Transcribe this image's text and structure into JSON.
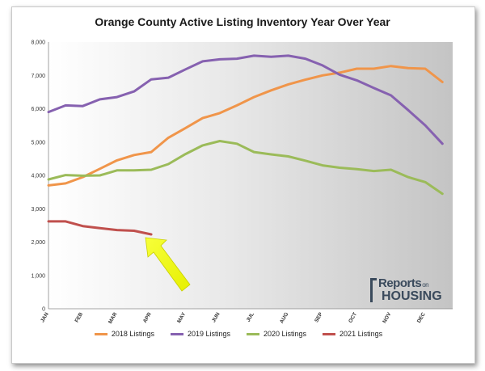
{
  "chart_data": {
    "type": "line",
    "title": "Orange County Active Listing Inventory Year Over Year",
    "ylim": [
      0,
      8000
    ],
    "y_ticks": [
      "0",
      "1,000",
      "2,000",
      "3,000",
      "4,000",
      "5,000",
      "6,000",
      "7,000",
      "8,000"
    ],
    "x_labels": [
      "JAN",
      "FEB",
      "MAR",
      "APR",
      "MAY",
      "JUN",
      "JUL",
      "AUG",
      "SEP",
      "OCT",
      "NOV",
      "DEC"
    ],
    "grid": false,
    "legend_position": "bottom",
    "series": [
      {
        "name": "2018 Listings",
        "color": "#f0954a",
        "x": [
          0,
          0.5,
          1,
          1.5,
          2,
          2.5,
          3,
          3.5,
          4,
          4.5,
          5,
          5.5,
          6,
          6.5,
          7,
          7.5,
          8,
          8.5,
          9,
          9.5,
          10,
          10.5,
          11,
          11.5
        ],
        "values": [
          3700,
          3760,
          3950,
          4200,
          4450,
          4610,
          4700,
          5130,
          5420,
          5720,
          5870,
          6100,
          6350,
          6550,
          6730,
          6870,
          7000,
          7080,
          7200,
          7200,
          7280,
          7220,
          7200,
          6800
        ]
      },
      {
        "name": "2019 Listings",
        "color": "#8661b0",
        "x": [
          0,
          0.5,
          1,
          1.5,
          2,
          2.5,
          3,
          3.5,
          4,
          4.5,
          5,
          5.5,
          6,
          6.5,
          7,
          7.5,
          8,
          8.5,
          9,
          9.5,
          10,
          10.5,
          11,
          11.5
        ],
        "values": [
          5900,
          6100,
          6080,
          6280,
          6350,
          6520,
          6880,
          6930,
          7180,
          7420,
          7480,
          7500,
          7590,
          7560,
          7590,
          7500,
          7300,
          7020,
          6850,
          6620,
          6400,
          5960,
          5500,
          4950
        ]
      },
      {
        "name": "2020 Listings",
        "color": "#9bbb59",
        "x": [
          0,
          0.5,
          1,
          1.5,
          2,
          2.5,
          3,
          3.5,
          4,
          4.5,
          5,
          5.5,
          6,
          6.5,
          7,
          7.5,
          8,
          8.5,
          9,
          9.5,
          10,
          10.5,
          11,
          11.5
        ],
        "values": [
          3880,
          4010,
          3990,
          4000,
          4150,
          4150,
          4170,
          4340,
          4640,
          4900,
          5030,
          4950,
          4700,
          4630,
          4570,
          4440,
          4300,
          4230,
          4190,
          4130,
          4170,
          3950,
          3800,
          3450
        ]
      },
      {
        "name": "2021 Listings",
        "color": "#c0504d",
        "x": [
          0,
          0.5,
          1,
          1.5,
          2,
          2.5,
          3
        ],
        "values": [
          2620,
          2620,
          2480,
          2420,
          2360,
          2340,
          2230
        ]
      }
    ]
  },
  "logo": {
    "reports": "Reports",
    "on": "on",
    "housing": "HOUSING"
  }
}
